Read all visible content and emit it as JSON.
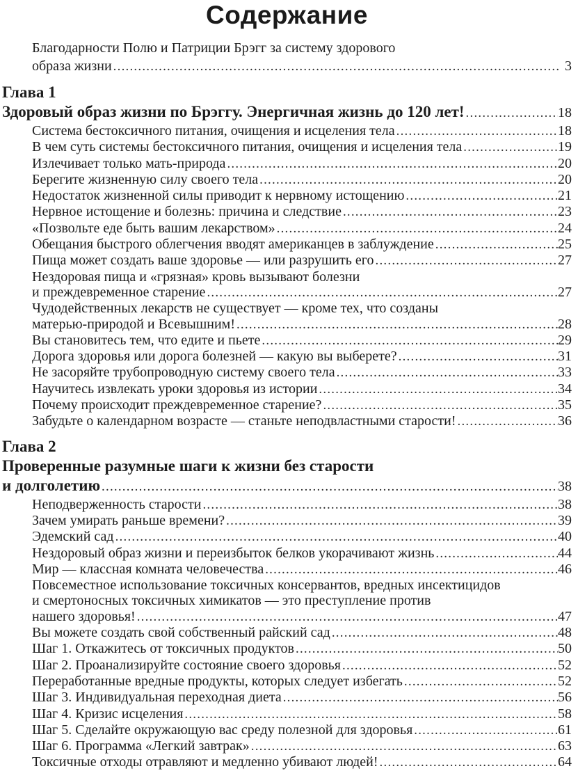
{
  "page_title": "Содержание",
  "toc": {
    "preamble": [
      {
        "lines": [
          "Благодарности Полю и Патриции Брэгг за систему здорового",
          "образа жизни"
        ],
        "page": "3"
      }
    ],
    "sections": [
      {
        "chapter_label": "Глава 1",
        "title": {
          "lines": [
            "Здоровый образ жизни по Брэггу. Энергичная жизнь до 120 лет!"
          ],
          "page": "18"
        },
        "entries": [
          {
            "lines": [
              "Система бестоксичного питания, очищения и исцеления тела"
            ],
            "page": "18"
          },
          {
            "lines": [
              "В чем суть системы бестоксичного питания, очищения и исцеления тела"
            ],
            "page": "19"
          },
          {
            "lines": [
              "Излечивает только мать-природа"
            ],
            "page": "20"
          },
          {
            "lines": [
              "Берегите жизненную силу своего тела"
            ],
            "page": "20"
          },
          {
            "lines": [
              "Недостаток жизненной силы приводит к нервному истощению"
            ],
            "page": "21"
          },
          {
            "lines": [
              "Нервное истощение и болезнь: причина и следствие"
            ],
            "page": "23"
          },
          {
            "lines": [
              "«Позвольте еде быть вашим лекарством»"
            ],
            "page": "24"
          },
          {
            "lines": [
              "Обещания быстрого облегчения вводят американцев в заблуждение"
            ],
            "page": "25"
          },
          {
            "lines": [
              "Пища может создать ваше здоровье — или разрушить его"
            ],
            "page": "27"
          },
          {
            "lines": [
              "Нездоровая пища и «грязная» кровь вызывают болезни",
              "и преждевременное старение"
            ],
            "page": "27"
          },
          {
            "lines": [
              "Чудодейственных лекарств не существует — кроме тех, что созданы",
              "матерью-природой и Всевышним!"
            ],
            "page": "28"
          },
          {
            "lines": [
              "Вы становитесь тем, что едите и пьете"
            ],
            "page": "29"
          },
          {
            "lines": [
              "Дорога здоровья или дорога болезней — какую вы выберете?"
            ],
            "page": "31"
          },
          {
            "lines": [
              "Не засоряйте трубопроводную систему своего тела"
            ],
            "page": "33"
          },
          {
            "lines": [
              "Научитесь извлекать уроки здоровья из истории"
            ],
            "page": "34"
          },
          {
            "lines": [
              "Почему происходит преждевременное старение?"
            ],
            "page": "35"
          },
          {
            "lines": [
              "Забудьте о календарном возрасте — станьте неподвластными старости!"
            ],
            "page": "36"
          }
        ]
      },
      {
        "chapter_label": "Глава 2",
        "title": {
          "lines": [
            "Проверенные разумные шаги к жизни без старости",
            "и долголетию"
          ],
          "page": "38"
        },
        "entries": [
          {
            "lines": [
              "Неподверженность старости"
            ],
            "page": "38"
          },
          {
            "lines": [
              "Зачем умирать раньше времени?"
            ],
            "page": "39"
          },
          {
            "lines": [
              "Эдемский сад"
            ],
            "page": "40"
          },
          {
            "lines": [
              "Нездоровый образ жизни и переизбыток белков укорачивают жизнь"
            ],
            "page": "44"
          },
          {
            "lines": [
              "Мир — классная комната человечества"
            ],
            "page": "46"
          },
          {
            "lines": [
              "Повсеместное использование токсичных консервантов, вредных инсектицидов",
              "и смертоносных токсичных химикатов — это преступление против",
              "нашего здоровья!"
            ],
            "page": "47"
          },
          {
            "lines": [
              "Вы можете создать свой собственный райский сад"
            ],
            "page": "48"
          },
          {
            "lines": [
              "Шаг 1. Откажитесь от токсичных продуктов"
            ],
            "page": "50"
          },
          {
            "lines": [
              "Шаг 2. Проанализируйте состояние своего здоровья"
            ],
            "page": "52"
          },
          {
            "lines": [
              "Переработанные вредные продукты, которых следует избегать"
            ],
            "page": "52"
          },
          {
            "lines": [
              "Шаг 3. Индивидуальная переходная диета"
            ],
            "page": "56"
          },
          {
            "lines": [
              "Шаг 4. Кризис исцеления"
            ],
            "page": "58"
          },
          {
            "lines": [
              "Шаг 5. Сделайте окружающую вас среду полезной для здоровья"
            ],
            "page": "61"
          },
          {
            "lines": [
              "Шаг 6. Программа «Легкий завтрак»"
            ],
            "page": "63"
          },
          {
            "lines": [
              "Токсичные отходы отравляют и медленно убивают людей!"
            ],
            "page": "64"
          }
        ]
      }
    ]
  }
}
